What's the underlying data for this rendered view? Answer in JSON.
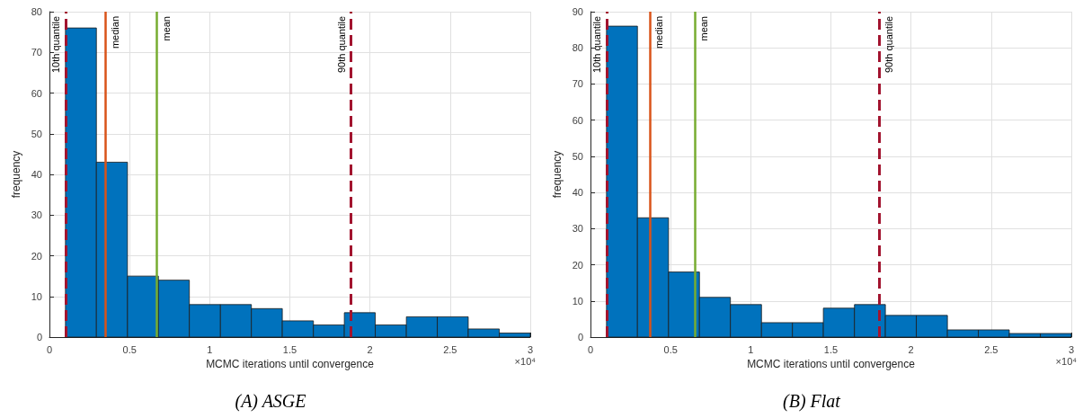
{
  "chart_data": [
    {
      "type": "histogram",
      "title": "(A) ASGE",
      "xlabel": "MCMC iterations until convergence",
      "ylabel": "frequency",
      "bins": [
        0.1,
        0.293,
        0.487,
        0.68,
        0.873,
        1.067,
        1.26,
        1.453,
        1.647,
        1.84,
        2.033,
        2.227,
        2.42,
        2.613,
        2.807,
        3
      ],
      "values": [
        76,
        43,
        15,
        14,
        8,
        8,
        7,
        4,
        3,
        6,
        3,
        5,
        5,
        2,
        1
      ],
      "color": "#0072bd",
      "xlim": [
        0,
        3
      ],
      "xticks": [
        0,
        0.5,
        1,
        1.5,
        2,
        2.5,
        3
      ],
      "ylim": [
        0,
        80
      ],
      "yticks": [
        0,
        10,
        20,
        30,
        40,
        50,
        60,
        70,
        80
      ],
      "ref_lines": [
        {
          "axis": "x",
          "value": 0.67,
          "label": "mean",
          "color": "#77ac30",
          "line_style": "solid"
        },
        {
          "axis": "x",
          "value": 0.35,
          "label": "median",
          "color": "#d95319",
          "line_style": "solid"
        },
        {
          "axis": "x",
          "value": 0.1,
          "label": "10th quantile",
          "color": "#a2142f",
          "line_style": "dashed"
        },
        {
          "axis": "x",
          "value": 1.88,
          "label": "90th quantile",
          "color": "#a2142f",
          "line_style": "dashed"
        }
      ],
      "annotations": [
        "×10⁴"
      ],
      "grid": true
    },
    {
      "type": "histogram",
      "title": "(B) Flat",
      "xlabel": "MCMC iterations until convergence",
      "ylabel": "frequency",
      "bins": [
        0.1,
        0.293,
        0.487,
        0.68,
        0.873,
        1.067,
        1.26,
        1.453,
        1.647,
        1.84,
        2.033,
        2.227,
        2.42,
        2.613,
        2.807,
        3
      ],
      "values": [
        86,
        33,
        18,
        11,
        9,
        4,
        4,
        8,
        9,
        6,
        6,
        2,
        2,
        1,
        1
      ],
      "color": "#0072bd",
      "xlim": [
        0,
        3
      ],
      "xticks": [
        0,
        0.5,
        1,
        1.5,
        2,
        2.5,
        3
      ],
      "ylim": [
        0,
        90
      ],
      "yticks": [
        0,
        10,
        20,
        30,
        40,
        50,
        60,
        70,
        80,
        90
      ],
      "ref_lines": [
        {
          "axis": "x",
          "value": 0.65,
          "label": "mean",
          "color": "#77ac30",
          "line_style": "solid"
        },
        {
          "axis": "x",
          "value": 0.37,
          "label": "median",
          "color": "#d95319",
          "line_style": "solid"
        },
        {
          "axis": "x",
          "value": 0.1,
          "label": "10th quantile",
          "color": "#a2142f",
          "line_style": "dashed"
        },
        {
          "axis": "x",
          "value": 1.8,
          "label": "90th quantile",
          "color": "#a2142f",
          "line_style": "dashed"
        }
      ],
      "annotations": [
        "×10⁴"
      ],
      "grid": true
    }
  ]
}
